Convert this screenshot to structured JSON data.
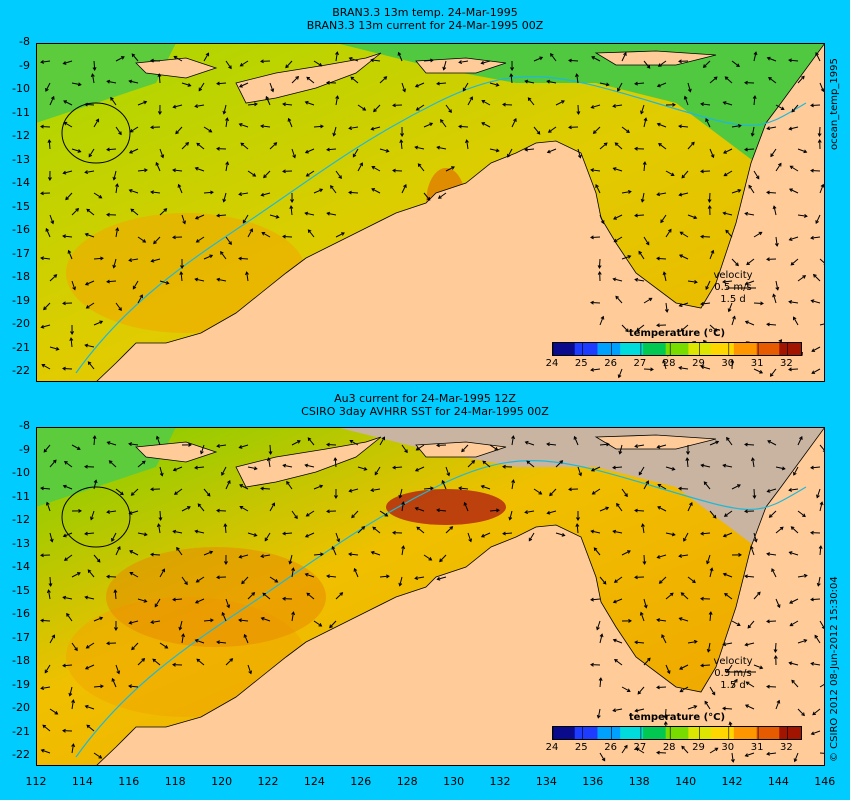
{
  "panels": [
    {
      "id": "bran",
      "title_line1": "BRAN3.3 13m temp. 24-Mar-1995",
      "title_line2": "BRAN3.3 13m current for 24-Mar-1995 00Z",
      "side_label": "ocean_temp_1995",
      "velocity_label": "velocity",
      "velocity_value": "0.5 m/s",
      "velocity_time": "1.5 d"
    },
    {
      "id": "au3",
      "title_line1": "Au3 current for 24-Mar-1995 12Z",
      "title_line2": "CSIRO 3day AVHRR SST for 24-Mar-1995 00Z",
      "side_label": "© CSIRO 2012  08-Jun-2012 15:30:04",
      "velocity_label": "velocity",
      "velocity_value": "0.5 m/s",
      "velocity_time": "1.5 d"
    }
  ],
  "colorbar": {
    "title": "temperature (°C)",
    "ticks": [
      "24",
      "25",
      "26",
      "27",
      "28",
      "29",
      "30",
      "31",
      "32"
    ],
    "colors": [
      "#0a0a8c",
      "#1e3cff",
      "#00a0ff",
      "#00dcdc",
      "#00c850",
      "#78dc00",
      "#dce600",
      "#ffd700",
      "#ff9600",
      "#e65a00",
      "#a01400"
    ]
  },
  "y_ticks": [
    "-8",
    "-9",
    "-10",
    "-11",
    "-12",
    "-13",
    "-14",
    "-15",
    "-16",
    "-17",
    "-18",
    "-19",
    "-20",
    "-21",
    "-22"
  ],
  "x_ticks": [
    "112",
    "114",
    "116",
    "118",
    "120",
    "122",
    "124",
    "126",
    "128",
    "130",
    "132",
    "134",
    "136",
    "138",
    "140",
    "142",
    "144",
    "146"
  ],
  "colors": {
    "background": "#00ccff",
    "land": "#ffcc99",
    "no_data": "#c8b4a0",
    "sea_warm": "#e8b400",
    "sea_green": "#8cd200",
    "current_arrow": "#000000"
  }
}
